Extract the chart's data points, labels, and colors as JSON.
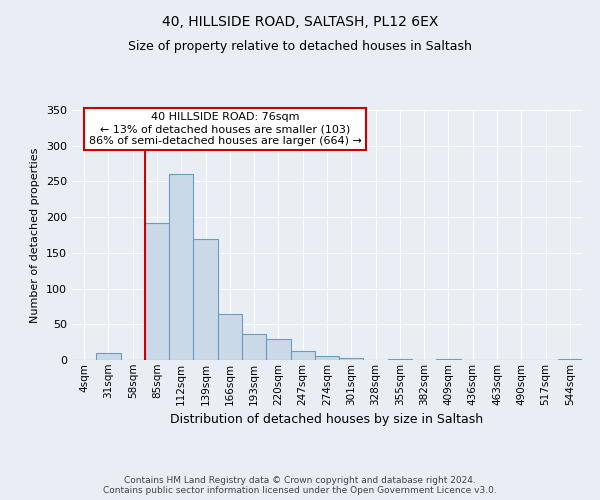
{
  "title": "40, HILLSIDE ROAD, SALTASH, PL12 6EX",
  "subtitle": "Size of property relative to detached houses in Saltash",
  "xlabel": "Distribution of detached houses by size in Saltash",
  "ylabel": "Number of detached properties",
  "bin_labels": [
    "4sqm",
    "31sqm",
    "58sqm",
    "85sqm",
    "112sqm",
    "139sqm",
    "166sqm",
    "193sqm",
    "220sqm",
    "247sqm",
    "274sqm",
    "301sqm",
    "328sqm",
    "355sqm",
    "382sqm",
    "409sqm",
    "436sqm",
    "463sqm",
    "490sqm",
    "517sqm",
    "544sqm"
  ],
  "bar_values": [
    0,
    10,
    0,
    192,
    260,
    170,
    65,
    37,
    29,
    13,
    5,
    3,
    0,
    2,
    0,
    2,
    0,
    0,
    0,
    0,
    2
  ],
  "bar_color": "#c9d9e8",
  "bar_edge_color": "#6a9ec0",
  "ylim": [
    0,
    350
  ],
  "yticks": [
    0,
    50,
    100,
    150,
    200,
    250,
    300,
    350
  ],
  "property_bin_index": 3,
  "annotation_title": "40 HILLSIDE ROAD: 76sqm",
  "annotation_line1": "← 13% of detached houses are smaller (103)",
  "annotation_line2": "86% of semi-detached houses are larger (664) →",
  "annotation_box_color": "#ffffff",
  "annotation_box_edge": "#cc0000",
  "vline_color": "#cc0000",
  "footer_line1": "Contains HM Land Registry data © Crown copyright and database right 2024.",
  "footer_line2": "Contains public sector information licensed under the Open Government Licence v3.0.",
  "background_color": "#e8eef4",
  "grid_color": "#ffffff"
}
